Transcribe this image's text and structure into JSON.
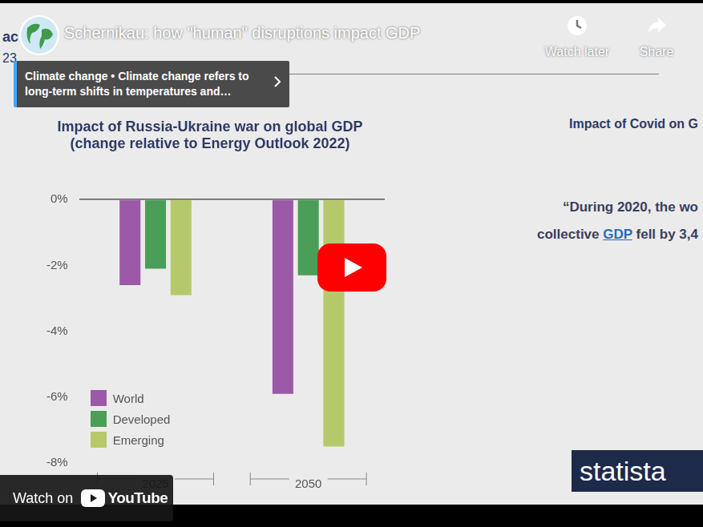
{
  "chart_data": {
    "type": "bar",
    "title": [
      "Impact of Russia-Ukraine war on global GDP",
      "(change relative to Energy Outlook 2022)"
    ],
    "categories": [
      "2025",
      "2050"
    ],
    "series": [
      {
        "name": "World",
        "color": "#9b59a8",
        "values": [
          -2.6,
          -5.9
        ]
      },
      {
        "name": "Developed",
        "color": "#4a9e57",
        "values": [
          -2.1,
          -2.3
        ]
      },
      {
        "name": "Emerging",
        "color": "#b5c96a",
        "values": [
          -2.9,
          -7.5
        ]
      }
    ],
    "ylim": [
      -8,
      0
    ],
    "yticks": [
      {
        "value": 0,
        "label": "0%"
      },
      {
        "value": -2,
        "label": "-2%"
      },
      {
        "value": -4,
        "label": "-4%"
      },
      {
        "value": -6,
        "label": "-6%"
      },
      {
        "value": -8,
        "label": "-8%"
      }
    ],
    "grid": false,
    "legend": "bottom-left"
  },
  "video": {
    "title": "Schernikau: how \"human\" disruptions impact GDP",
    "info_panel": "Climate change • Climate change refers to long-term shifts in temperatures and…",
    "watch_later": "Watch later",
    "share": "Share",
    "watch_on": "Watch on",
    "youtube": "YouTube"
  },
  "slide": {
    "header": "ac",
    "header_sub": "23",
    "right_title": "Impact of Covid on G",
    "quote_line1": "“During 2020, the wo",
    "quote_before": "collective",
    "quote_link": "GDP",
    "quote_after": "fell by 3,4",
    "logo": "statista"
  }
}
